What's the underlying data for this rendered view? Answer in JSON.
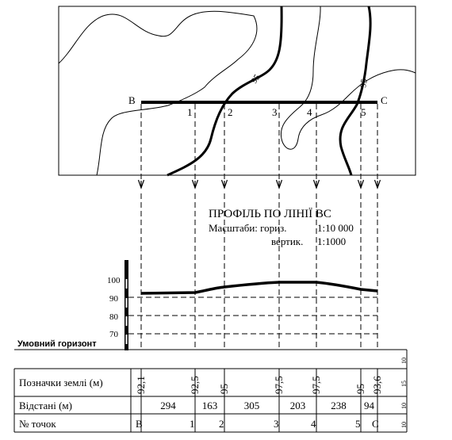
{
  "map": {
    "start_label": "B",
    "end_label": "C",
    "point_labels": [
      "1",
      "2",
      "3",
      "4",
      "5"
    ],
    "contour_labels": [
      "95",
      "95"
    ]
  },
  "profile": {
    "title": "ПРОФІЛЬ ПО ЛІНІЇ ВС",
    "scale_label": "Масштаби: гориз.",
    "scale_horizontal": "1:10 000",
    "scale_vertical_label": "вертик.",
    "scale_vertical": "1:1000",
    "axis_ticks": [
      "100",
      "90",
      "80",
      "70"
    ],
    "horizon_label": "Умовний горизонт"
  },
  "table": {
    "row_elevations_label": "Позначки землі (м)",
    "row_distances_label": "Відстані (м)",
    "row_points_label": "№ точок",
    "elevations": [
      "92,1",
      "92,5",
      "95",
      "97,5",
      "97,5",
      "95",
      "93,6"
    ],
    "distances": [
      "294",
      "163",
      "305",
      "203",
      "238",
      "94"
    ],
    "points": [
      "B",
      "1",
      "2",
      "3",
      "4",
      "5",
      "C"
    ],
    "row_heights": [
      "10",
      "15",
      "10",
      "10"
    ]
  }
}
